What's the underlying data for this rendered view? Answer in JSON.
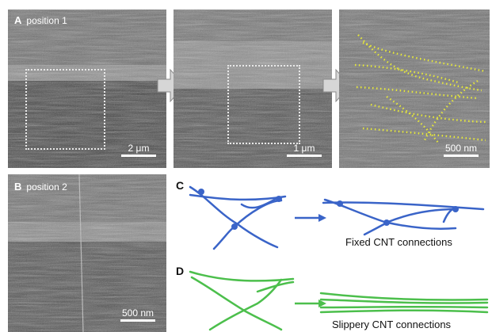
{
  "panels": {
    "a1": {
      "letter": "A",
      "label": "position 1",
      "scale": "2 μm"
    },
    "a2": {
      "scale": "1 μm"
    },
    "a3": {
      "scale": "500 nm"
    },
    "b": {
      "letter": "B",
      "label": "position 2",
      "scale": "500 nm"
    }
  },
  "schematics": {
    "c": {
      "letter": "C",
      "caption": "Fixed CNT connections",
      "color": "#3a64c8"
    },
    "d": {
      "letter": "D",
      "caption": "Slippery CNT connections",
      "color": "#4cbf4c"
    }
  },
  "colors": {
    "tracing": "#e6e83a",
    "sem_base": "#5a5a5a"
  }
}
